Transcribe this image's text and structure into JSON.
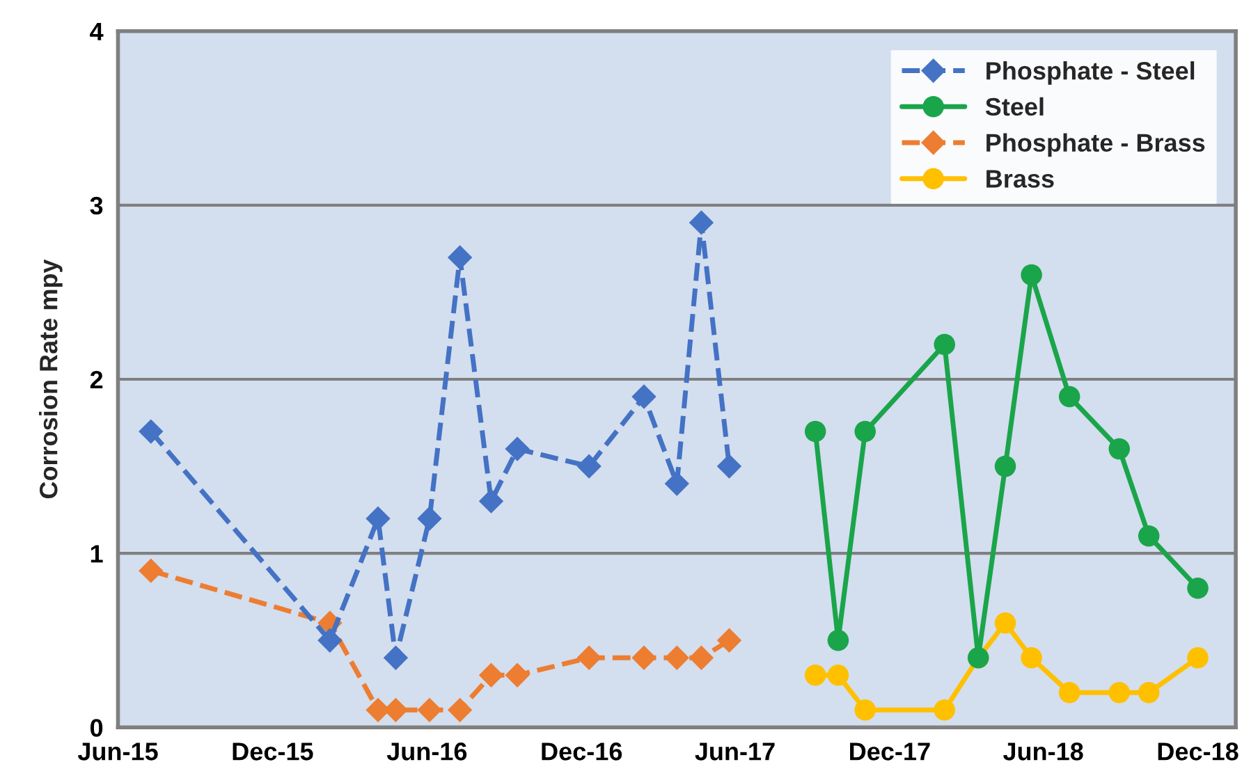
{
  "chart_data": {
    "type": "line",
    "ylabel": "Corrosion Rate mpy",
    "xlim": [
      "2015-06-01",
      "2019-01-15"
    ],
    "ylim": [
      0,
      4
    ],
    "yticks": [
      0,
      1,
      2,
      3,
      4
    ],
    "xticks": [
      {
        "value": "2015-06-01",
        "label": "Jun-15"
      },
      {
        "value": "2015-12-01",
        "label": "Dec-15"
      },
      {
        "value": "2016-06-01",
        "label": "Jun-16"
      },
      {
        "value": "2016-12-01",
        "label": "Dec-16"
      },
      {
        "value": "2017-06-01",
        "label": "Jun-17"
      },
      {
        "value": "2017-12-01",
        "label": "Dec-17"
      },
      {
        "value": "2018-06-01",
        "label": "Jun-18"
      },
      {
        "value": "2018-12-01",
        "label": "Dec-18"
      }
    ],
    "grid": "y",
    "legend": "top right",
    "series": [
      {
        "name": "Phosphate - Steel",
        "color": "#4472c4",
        "marker": "diamond",
        "line_style": "dashed",
        "x": [
          "2015-07-10",
          "2016-02-07",
          "2016-04-04",
          "2016-04-25",
          "2016-06-04",
          "2016-07-10",
          "2016-08-16",
          "2016-09-16",
          "2016-12-10",
          "2017-02-13",
          "2017-03-24",
          "2017-04-22",
          "2017-05-25"
        ],
        "values": [
          1.7,
          0.5,
          1.2,
          0.4,
          1.2,
          2.7,
          1.3,
          1.6,
          1.5,
          1.9,
          1.4,
          2.9,
          1.5
        ]
      },
      {
        "name": "Steel",
        "color": "#1aa54a",
        "marker": "circle",
        "line_style": "solid",
        "x": [
          "2017-09-04",
          "2017-10-01",
          "2017-11-02",
          "2018-02-04",
          "2018-03-16",
          "2018-04-17",
          "2018-05-18",
          "2018-07-02",
          "2018-08-30",
          "2018-10-04",
          "2018-12-01"
        ],
        "values": [
          1.7,
          0.5,
          1.7,
          2.2,
          0.4,
          1.5,
          2.6,
          1.9,
          1.6,
          1.1,
          0.8
        ]
      },
      {
        "name": "Phosphate - Brass",
        "color": "#ed7d31",
        "marker": "diamond",
        "line_style": "dashed",
        "x": [
          "2015-07-10",
          "2016-02-07",
          "2016-04-04",
          "2016-04-25",
          "2016-06-04",
          "2016-07-10",
          "2016-08-16",
          "2016-09-16",
          "2016-12-10",
          "2017-02-13",
          "2017-03-24",
          "2017-04-22",
          "2017-05-25"
        ],
        "values": [
          0.9,
          0.6,
          0.1,
          0.1,
          0.1,
          0.1,
          0.3,
          0.3,
          0.4,
          0.4,
          0.4,
          0.4,
          0.5
        ]
      },
      {
        "name": "Brass",
        "color": "#ffc000",
        "marker": "circle",
        "line_style": "solid",
        "x": [
          "2017-09-04",
          "2017-10-01",
          "2017-11-02",
          "2018-02-04",
          "2018-03-16",
          "2018-04-17",
          "2018-05-18",
          "2018-07-02",
          "2018-08-30",
          "2018-10-04",
          "2018-12-01"
        ],
        "values": [
          0.3,
          0.3,
          0.1,
          0.1,
          0.4,
          0.6,
          0.4,
          0.2,
          0.2,
          0.2,
          0.4
        ]
      }
    ]
  }
}
